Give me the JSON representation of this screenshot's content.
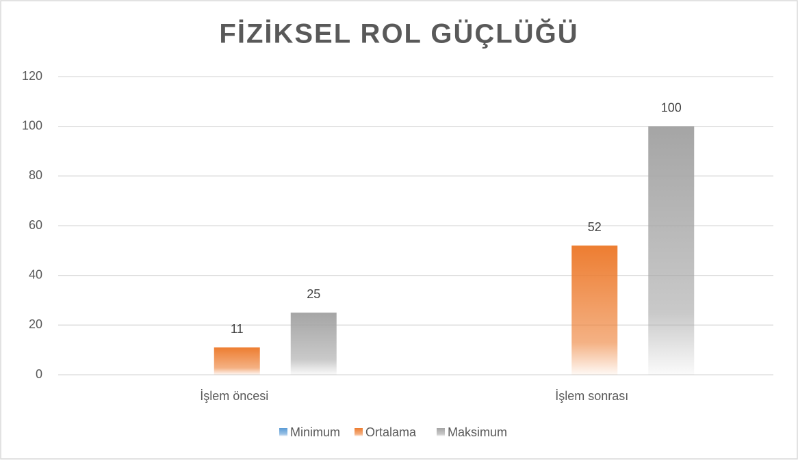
{
  "chart_data": {
    "type": "bar",
    "title": "FİZİKSEL ROL GÜÇLÜĞÜ",
    "categories": [
      "İşlem öncesi",
      "İşlem sonrası"
    ],
    "series": [
      {
        "name": "Minimum",
        "color": "#5b9bd5",
        "values": [
          0,
          0
        ]
      },
      {
        "name": "Ortalama",
        "color": "#ed7d31",
        "values": [
          11,
          52
        ]
      },
      {
        "name": "Maksimum",
        "color": "#a5a5a5",
        "values": [
          25,
          100
        ]
      }
    ],
    "ylim": [
      0,
      120
    ],
    "yticks": [
      0,
      20,
      40,
      60,
      80,
      100,
      120
    ],
    "grid": true,
    "legend": "bottom"
  }
}
